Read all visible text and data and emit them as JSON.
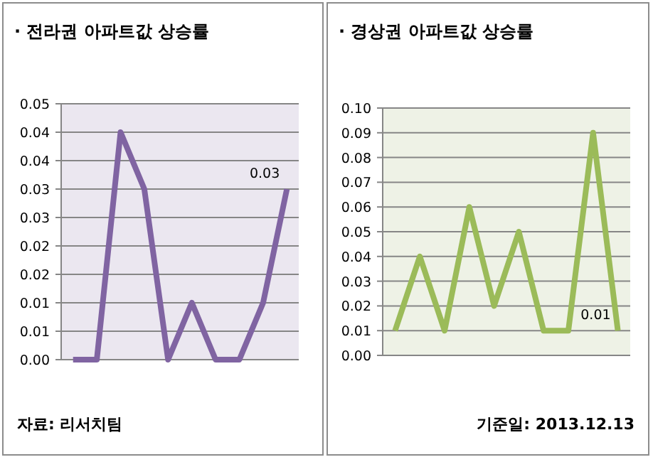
{
  "chart_data": [
    {
      "type": "line",
      "title": "· 전라권 아파트값 상승률",
      "categories": [
        null,
        null,
        null,
        null,
        null,
        null,
        null,
        null,
        null,
        null
      ],
      "values": [
        0,
        0,
        0.04,
        0.03,
        0,
        0.01,
        0,
        0,
        0.01,
        0.03
      ],
      "color": "#8064a2",
      "value_labels": [
        null,
        null,
        null,
        null,
        null,
        null,
        null,
        null,
        null,
        "0.03"
      ],
      "ylim": [
        0,
        0.045
      ],
      "yticks": [
        {
          "value": 0,
          "label": "0.00"
        },
        {
          "value": 0.005,
          "label": "0.01"
        },
        {
          "value": 0.01,
          "label": "0.01"
        },
        {
          "value": 0.015,
          "label": "0.02"
        },
        {
          "value": 0.02,
          "label": "0.02"
        },
        {
          "value": 0.025,
          "label": "0.03"
        },
        {
          "value": 0.03,
          "label": "0.03"
        },
        {
          "value": 0.035,
          "label": "0.04"
        },
        {
          "value": 0.04,
          "label": "0.04"
        },
        {
          "value": 0.045,
          "label": "0.05"
        }
      ],
      "grid": "y",
      "annotations": [
        "자료: 리서치팀"
      ]
    },
    {
      "type": "line",
      "title": "· 경상권 아파트값 상승률",
      "categories": [
        null,
        null,
        null,
        null,
        null,
        null,
        null,
        null,
        null,
        null
      ],
      "values": [
        0.01,
        0.04,
        0.01,
        0.06,
        0.02,
        0.05,
        0.01,
        0.01,
        0.09,
        0.01
      ],
      "color": "#9bbb59",
      "value_labels": [
        null,
        null,
        null,
        null,
        null,
        null,
        null,
        null,
        null,
        "0.01"
      ],
      "ylim": [
        0,
        0.1
      ],
      "yticks": [
        {
          "value": 0,
          "label": "0.00"
        },
        {
          "value": 0.01,
          "label": "0.01"
        },
        {
          "value": 0.02,
          "label": "0.02"
        },
        {
          "value": 0.03,
          "label": "0.03"
        },
        {
          "value": 0.04,
          "label": "0.04"
        },
        {
          "value": 0.05,
          "label": "0.05"
        },
        {
          "value": 0.06,
          "label": "0.06"
        },
        {
          "value": 0.07,
          "label": "0.07"
        },
        {
          "value": 0.08,
          "label": "0.08"
        },
        {
          "value": 0.09,
          "label": "0.09"
        },
        {
          "value": 0.1,
          "label": "0.10"
        }
      ],
      "grid": "y",
      "annotations": [
        "기준일: 2013.12.13"
      ]
    }
  ]
}
